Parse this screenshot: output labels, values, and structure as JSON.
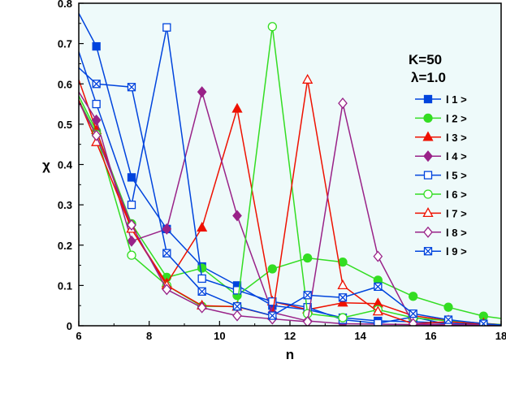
{
  "chart_data": {
    "type": "line",
    "xlabel": "n",
    "ylabel": "χ",
    "xlim": [
      6,
      18
    ],
    "ylim": [
      0,
      0.8
    ],
    "xticks": [
      6,
      8,
      10,
      12,
      14,
      16,
      18
    ],
    "yticks": [
      0,
      0.1,
      0.2,
      0.3,
      0.4,
      0.5,
      0.6,
      0.7,
      0.8
    ],
    "background_color": "#eefafa",
    "grid": false,
    "legend_position": "right",
    "annotations": [
      "K=50",
      "λ=1.0"
    ],
    "series": [
      {
        "name": "l 1 >",
        "color": "#0044dd",
        "marker": "square",
        "filled": true,
        "x": [
          6,
          6.5,
          7.5,
          8.5,
          9.5,
          10.5,
          11.5,
          12.5,
          13.5,
          14.5,
          15.5,
          16.5,
          17.5,
          18
        ],
        "y": [
          0.775,
          0.693,
          0.368,
          0.24,
          0.147,
          0.1,
          0.05,
          0.04,
          0.02,
          0.012,
          0.01,
          0.006,
          0.003,
          0.002
        ]
      },
      {
        "name": "l 2 >",
        "color": "#33dd22",
        "marker": "circle",
        "filled": true,
        "x": [
          6,
          6.5,
          7.5,
          8.5,
          9.5,
          10.5,
          11.5,
          12.5,
          13.5,
          14.5,
          15.5,
          16.5,
          17.5,
          18
        ],
        "y": [
          0.57,
          0.483,
          0.253,
          0.12,
          0.143,
          0.075,
          0.141,
          0.168,
          0.158,
          0.113,
          0.073,
          0.046,
          0.024,
          0.018
        ]
      },
      {
        "name": "l 3 >",
        "color": "#ee1100",
        "marker": "triangle",
        "filled": true,
        "x": [
          6,
          6.5,
          7.5,
          8.5,
          9.5,
          10.5,
          11.5,
          12.5,
          13.5,
          14.5,
          15.5,
          16.5,
          17.5,
          18
        ],
        "y": [
          0.61,
          0.485,
          0.24,
          0.105,
          0.243,
          0.538,
          0.06,
          0.04,
          0.057,
          0.055,
          0.025,
          0.013,
          0.006,
          0.003
        ]
      },
      {
        "name": "l 4 >",
        "color": "#992288",
        "marker": "diamond",
        "filled": true,
        "x": [
          6,
          6.5,
          7.5,
          8.5,
          9.5,
          10.5,
          11.5,
          12.5,
          13.5,
          14.5,
          15.5,
          16.5,
          17.5,
          18
        ],
        "y": [
          0.58,
          0.51,
          0.21,
          0.24,
          0.58,
          0.273,
          0.033,
          0.012,
          0.005,
          0.004,
          0.003,
          0.002,
          0.001,
          0.001
        ]
      },
      {
        "name": "l 5 >",
        "color": "#0044dd",
        "marker": "square",
        "filled": false,
        "x": [
          6,
          6.5,
          7.5,
          8.5,
          9.5,
          10.5,
          11.5,
          12.5,
          13.5,
          14.5,
          15.5,
          16.5,
          17.5,
          18
        ],
        "y": [
          0.68,
          0.55,
          0.3,
          0.74,
          0.117,
          0.088,
          0.06,
          0.046,
          0.015,
          0.006,
          0.022,
          0.003,
          0.002,
          0.001
        ]
      },
      {
        "name": "l 6 >",
        "color": "#33dd22",
        "marker": "circle",
        "filled": false,
        "x": [
          6,
          6.5,
          7.5,
          8.5,
          9.5,
          10.5,
          11.5,
          12.5,
          13.5,
          14.5,
          15.5,
          16.5,
          17.5,
          18
        ],
        "y": [
          0.56,
          0.475,
          0.175,
          0.1,
          0.048,
          0.048,
          0.742,
          0.03,
          0.02,
          0.04,
          0.02,
          0.012,
          0.005,
          0.003
        ]
      },
      {
        "name": "l 7 >",
        "color": "#ee1100",
        "marker": "triangle",
        "filled": false,
        "x": [
          6,
          6.5,
          7.5,
          8.5,
          9.5,
          10.5,
          11.5,
          12.5,
          13.5,
          14.5,
          15.5,
          16.5,
          17.5,
          18
        ],
        "y": [
          0.56,
          0.455,
          0.24,
          0.1,
          0.05,
          0.047,
          0.025,
          0.61,
          0.1,
          0.035,
          0.005,
          0.01,
          0.004,
          0.002
        ]
      },
      {
        "name": "l 8 >",
        "color": "#992288",
        "marker": "diamond",
        "filled": false,
        "x": [
          6,
          6.5,
          7.5,
          8.5,
          9.5,
          10.5,
          11.5,
          12.5,
          13.5,
          14.5,
          15.5,
          16.5,
          17.5,
          18
        ],
        "y": [
          0.555,
          0.472,
          0.25,
          0.09,
          0.045,
          0.025,
          0.017,
          0.01,
          0.552,
          0.172,
          0.005,
          0.003,
          0.002,
          0.001
        ]
      },
      {
        "name": "l 9 >",
        "color": "#0044dd",
        "marker": "xsquare",
        "filled": false,
        "x": [
          6,
          6.5,
          7.5,
          8.5,
          9.5,
          10.5,
          11.5,
          12.5,
          13.5,
          14.5,
          15.5,
          16.5,
          17.5,
          18
        ],
        "y": [
          0.64,
          0.6,
          0.592,
          0.18,
          0.085,
          0.048,
          0.025,
          0.076,
          0.07,
          0.097,
          0.03,
          0.015,
          0.005,
          0.002
        ]
      }
    ]
  }
}
